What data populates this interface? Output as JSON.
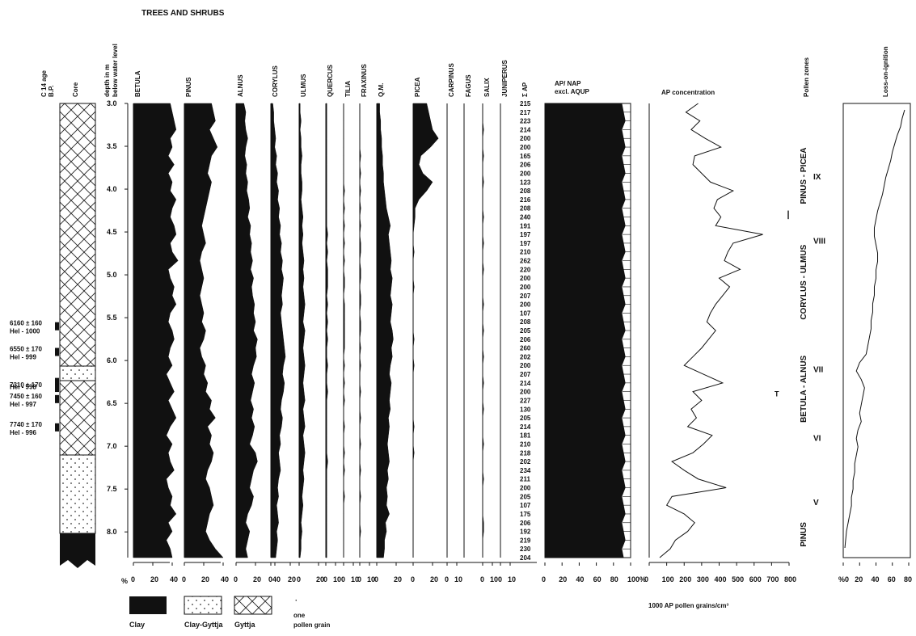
{
  "title": "TREES AND SHRUBS",
  "headers": {
    "c14": "C 14 age",
    "bp": "B.P.",
    "core": "Core",
    "depth1": "depth in m",
    "depth2": "below water level",
    "sum_ap": "Σ AP",
    "apnap1": "AP/ NAP",
    "apnap2": "excl. AQUP",
    "apconc": "AP concentration",
    "pollen_zones": "Pollen zones",
    "loi": "Loss-on-ignition"
  },
  "depth_ticks": [
    "3.0",
    "3.5",
    "4.0",
    "4.5",
    "5.0",
    "5.5",
    "6.0",
    "6.5",
    "7.0",
    "7.5",
    "8.0"
  ],
  "dates": [
    {
      "age": "6160 ± 160",
      "lab": "Hel - 1000"
    },
    {
      "age": "6550 ± 170",
      "lab": "Hel - 999"
    },
    {
      "age": "",
      "lab": "Hel - 998"
    },
    {
      "age": "7310 ± 170",
      "lab": ""
    },
    {
      "age": "7450 ± 160",
      "lab": "Hel - 997"
    },
    {
      "age": "7740 ± 170",
      "lab": "Hel - 996"
    }
  ],
  "ap_sums": [
    "215",
    "217",
    "223",
    "214",
    "200",
    "200",
    "165",
    "206",
    "200",
    "123",
    "208",
    "216",
    "208",
    "240",
    "191",
    "197",
    "197",
    "210",
    "262",
    "220",
    "200",
    "200",
    "207",
    "200",
    "107",
    "208",
    "205",
    "206",
    "260",
    "202",
    "200",
    "207",
    "214",
    "200",
    "227",
    "130",
    "205",
    "214",
    "181",
    "210",
    "218",
    "202",
    "234",
    "211",
    "200",
    "205",
    "107",
    "175",
    "206",
    "192",
    "219",
    "230",
    "204"
  ],
  "taxa": [
    {
      "name": "BETULA",
      "x1": "0",
      "x2": "20",
      "x3": "40",
      "values": [
        38,
        40,
        42,
        44,
        38,
        40,
        36,
        42,
        36,
        40,
        38,
        44,
        40,
        38,
        42,
        44,
        38,
        40,
        46,
        36,
        38,
        42,
        40,
        44,
        38,
        36,
        40,
        42,
        38,
        36,
        40,
        34,
        38,
        42,
        36,
        40,
        44,
        38,
        34,
        40,
        36,
        38,
        42,
        34,
        36,
        40,
        38,
        44,
        36,
        40,
        34,
        38,
        40
      ]
    },
    {
      "name": "PINUS",
      "x1": "0",
      "x2": "20",
      "x3": "40",
      "values": [
        28,
        30,
        32,
        26,
        30,
        34,
        28,
        26,
        24,
        28,
        26,
        24,
        22,
        20,
        18,
        20,
        22,
        18,
        16,
        18,
        20,
        18,
        16,
        18,
        20,
        18,
        22,
        20,
        16,
        18,
        22,
        20,
        24,
        22,
        28,
        26,
        32,
        24,
        28,
        26,
        30,
        28,
        24,
        22,
        26,
        28,
        30,
        26,
        24,
        22,
        26,
        32,
        40
      ]
    },
    {
      "name": "ALNUS",
      "x1": "0",
      "x2": "20",
      "x3": "40",
      "values": [
        8,
        10,
        9,
        10,
        12,
        10,
        9,
        11,
        10,
        12,
        11,
        13,
        14,
        12,
        15,
        14,
        16,
        15,
        17,
        15,
        18,
        16,
        17,
        19,
        18,
        20,
        18,
        22,
        20,
        21,
        18,
        16,
        19,
        17,
        15,
        18,
        16,
        19,
        17,
        14,
        20,
        22,
        18,
        16,
        14,
        18,
        16,
        12,
        10,
        14,
        12,
        10,
        12
      ]
    },
    {
      "name": "CORYLUS",
      "x1": "0",
      "x2": "20",
      "x3": "",
      "values": [
        2,
        3,
        3,
        4,
        5,
        4,
        6,
        5,
        7,
        6,
        8,
        7,
        9,
        8,
        10,
        9,
        11,
        10,
        12,
        11,
        13,
        12,
        11,
        12,
        10,
        11,
        12,
        13,
        14,
        15,
        13,
        12,
        14,
        13,
        11,
        10,
        12,
        11,
        9,
        10,
        8,
        9,
        10,
        8,
        7,
        8,
        6,
        7,
        8,
        6,
        7,
        6,
        5
      ]
    },
    {
      "name": "ULMUS",
      "x1": "0",
      "x2": "20",
      "x3": "",
      "values": [
        1,
        1,
        2,
        1,
        2,
        2,
        3,
        2,
        2,
        3,
        3,
        2,
        3,
        4,
        3,
        4,
        3,
        4,
        5,
        4,
        5,
        4,
        5,
        6,
        5,
        4,
        6,
        5,
        4,
        5,
        6,
        5,
        4,
        5,
        6,
        4,
        5,
        6,
        4,
        5,
        6,
        5,
        4,
        5,
        4,
        3,
        4,
        3,
        2,
        3,
        2,
        2,
        1
      ]
    },
    {
      "name": "QUERCUS",
      "x1": "0",
      "x2": "10",
      "x3": "",
      "values": [
        1,
        1,
        1,
        1,
        1,
        1,
        1,
        1,
        1,
        1,
        1,
        1,
        1,
        1,
        1,
        2,
        1,
        2,
        1,
        2,
        2,
        2,
        1,
        2,
        1,
        2,
        1,
        2,
        1,
        1,
        2,
        1,
        1,
        2,
        1,
        1,
        1,
        1,
        1,
        1,
        1,
        2,
        1,
        1,
        1,
        1,
        1,
        1,
        1,
        1,
        1,
        1,
        1
      ]
    },
    {
      "name": "TILIA",
      "x1": "0",
      "x2": "10",
      "x3": "",
      "values": [
        0,
        0,
        0,
        0,
        0,
        0,
        0,
        0,
        0,
        0,
        1,
        0,
        1,
        0,
        1,
        0,
        1,
        0,
        1,
        0,
        1,
        1,
        0,
        1,
        1,
        1,
        1,
        1,
        1,
        0,
        1,
        0,
        1,
        0,
        1,
        0,
        0,
        1,
        0,
        0,
        1,
        0,
        1,
        0,
        0,
        1,
        0,
        0,
        0,
        0,
        0,
        0,
        0
      ]
    },
    {
      "name": "FRAXINUS",
      "x1": "0",
      "x2": "10",
      "x3": "",
      "values": [
        0,
        0,
        0,
        0,
        0,
        0,
        1,
        0,
        1,
        0,
        1,
        0,
        1,
        0,
        1,
        0,
        1,
        1,
        0,
        1,
        1,
        0,
        1,
        1,
        0,
        1,
        1,
        0,
        1,
        0,
        1,
        0,
        0,
        1,
        0,
        0,
        1,
        0,
        0,
        1,
        0,
        0,
        1,
        0,
        0,
        1,
        0,
        0,
        0,
        1,
        0,
        0,
        0
      ]
    },
    {
      "name": "Q.M.",
      "x1": "0",
      "x2": "20",
      "x3": "",
      "values": [
        3,
        3,
        4,
        4,
        5,
        5,
        6,
        6,
        7,
        7,
        8,
        9,
        10,
        12,
        14,
        12,
        13,
        14,
        15,
        14,
        16,
        15,
        14,
        16,
        15,
        14,
        16,
        17,
        15,
        16,
        14,
        13,
        15,
        14,
        13,
        14,
        12,
        13,
        12,
        11,
        12,
        13,
        11,
        12,
        10,
        11,
        10,
        13,
        9,
        10,
        8,
        8,
        7
      ]
    },
    {
      "name": "PICEA",
      "x1": "0",
      "x2": "20",
      "x3": "",
      "values": [
        14,
        16,
        18,
        20,
        26,
        18,
        8,
        6,
        10,
        20,
        14,
        6,
        2,
        2,
        1,
        0,
        0,
        1,
        0,
        0,
        0,
        1,
        0,
        0,
        0,
        0,
        0,
        1,
        0,
        0,
        1,
        0,
        0,
        0,
        0,
        0,
        0,
        1,
        0,
        0,
        1,
        0,
        0,
        0,
        0,
        0,
        0,
        0,
        0,
        0,
        0,
        0,
        0
      ]
    },
    {
      "name": "CARPINUS",
      "x1": "0",
      "x2": "10",
      "x3": "",
      "values": []
    },
    {
      "name": "FAGUS",
      "x1": "",
      "x2": "",
      "x3": "",
      "values": []
    },
    {
      "name": "SALIX",
      "x1": "0",
      "x2": "10",
      "x3": "",
      "values": [
        0,
        0,
        0,
        1,
        0,
        0,
        1,
        0,
        0,
        1,
        0,
        0,
        0,
        1,
        0,
        0,
        1,
        0,
        0,
        1,
        0,
        0,
        0,
        1,
        0,
        0,
        1,
        0,
        0,
        1,
        0,
        0,
        1,
        0,
        0,
        1,
        0,
        0,
        0,
        1,
        0,
        0,
        0,
        1,
        0,
        0,
        0,
        0,
        1,
        1,
        0,
        0,
        0
      ]
    },
    {
      "name": "JUNIPERUS",
      "x1": "0",
      "x2": "10",
      "x3": "",
      "values": []
    }
  ],
  "apnap_ticks": [
    "0",
    "20",
    "40",
    "60",
    "80",
    "100%"
  ],
  "apconc_ticks": [
    "0",
    "100",
    "200",
    "300",
    "400",
    "500",
    "600",
    "700",
    "800"
  ],
  "apconc_values": [
    280,
    210,
    290,
    240,
    320,
    410,
    260,
    250,
    300,
    350,
    480,
    390,
    370,
    410,
    380,
    650,
    480,
    450,
    430,
    520,
    400,
    460,
    420,
    380,
    350,
    330,
    380,
    340,
    300,
    250,
    200,
    310,
    420,
    250,
    300,
    240,
    270,
    220,
    360,
    310,
    250,
    130,
    200,
    280,
    440,
    130,
    100,
    200,
    260,
    220,
    150,
    120,
    60
  ],
  "apconc_label": "1000 AP pollen grains/cm³",
  "zones": [
    {
      "label": "PINUS - PICEA",
      "roman": "IX"
    },
    {
      "label": "CORYLUS - ULMUS",
      "roman": "VIII"
    },
    {
      "label": "BETULA - ALNUS",
      "roman": "VII"
    },
    {
      "label": "",
      "roman": "VI"
    },
    {
      "label": "PINUS",
      "roman": "V"
    }
  ],
  "loi_ticks": [
    "%0",
    "20",
    "40",
    "60",
    "80"
  ],
  "loi_values": [
    75,
    72,
    70,
    66,
    63,
    60,
    58,
    55,
    52,
    50,
    48,
    45,
    42,
    40,
    38,
    38,
    40,
    42,
    42,
    40,
    40,
    38,
    38,
    36,
    36,
    34,
    34,
    32,
    30,
    28,
    20,
    16,
    22,
    26,
    24,
    22,
    20,
    22,
    18,
    16,
    18,
    16,
    14,
    14,
    12,
    12,
    10,
    10,
    8,
    6,
    4,
    3,
    2
  ],
  "legend": {
    "clay": "Clay",
    "clay_gyttja": "Clay-Gyttja",
    "gyttja": "Gyttja",
    "one1": "one",
    "one2": "pollen grain",
    "axis_percent": "%"
  }
}
